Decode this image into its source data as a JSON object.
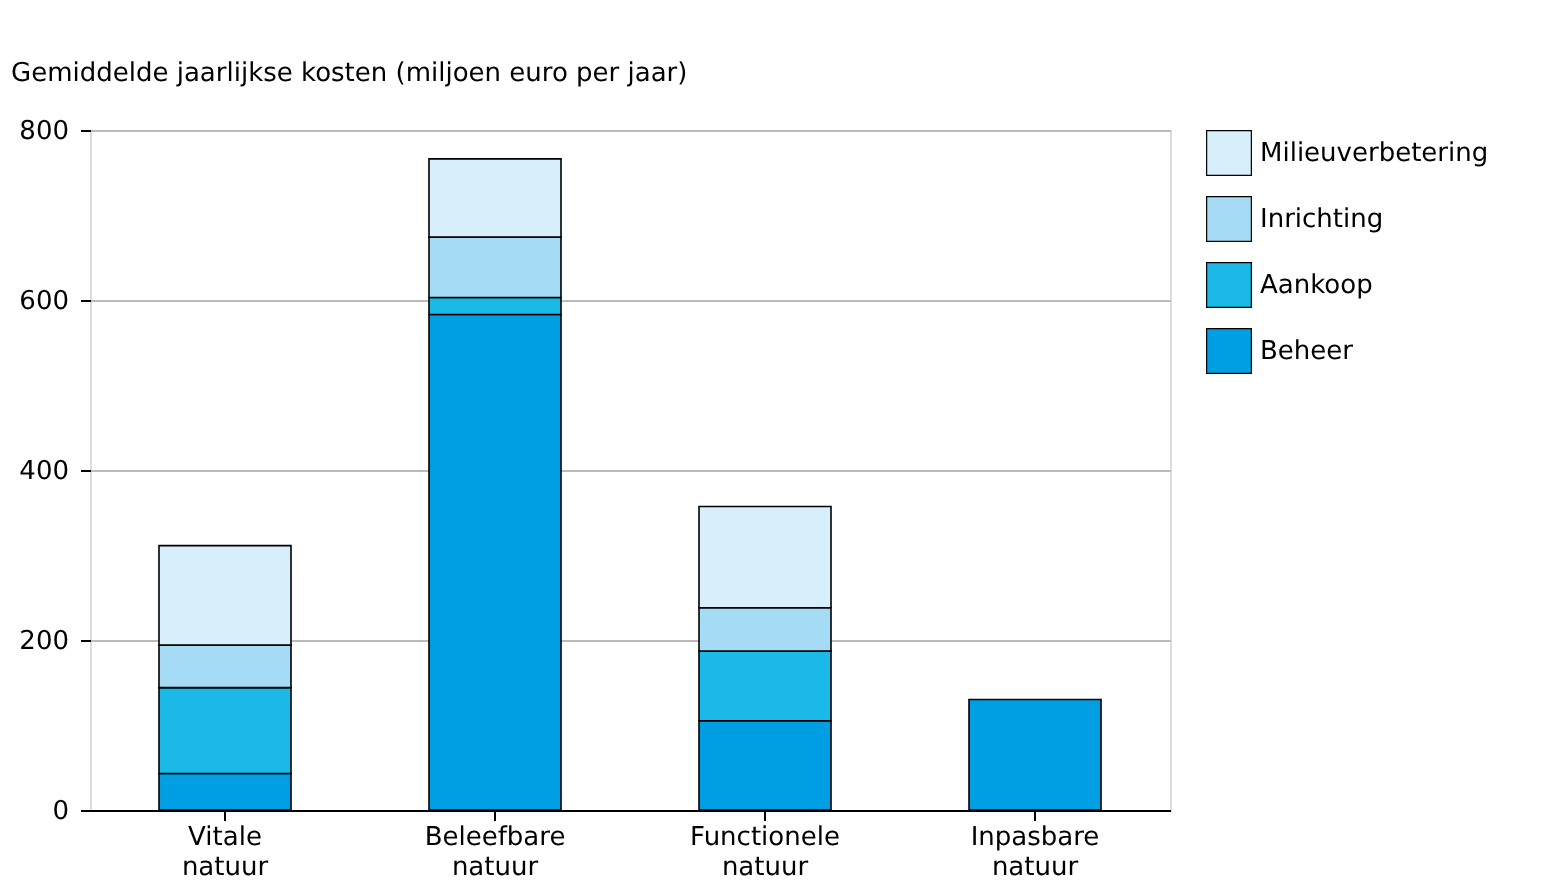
{
  "chart_data": {
    "type": "bar",
    "stacked": true,
    "ylabel": "Gemiddelde jaarlijkse kosten (miljoen euro per jaar)",
    "categories": [
      "Vitale natuur",
      "Beleefbare natuur",
      "Functionele natuur",
      "Inpasbare natuur"
    ],
    "series": [
      {
        "name": "Beheer",
        "color": "#009fe3",
        "values": [
          43,
          583,
          105,
          130
        ]
      },
      {
        "name": "Aankoop",
        "color": "#1bb9e8",
        "values": [
          101,
          20,
          82,
          null
        ]
      },
      {
        "name": "Inrichting",
        "color": "#a5dbf4",
        "values": [
          50,
          71,
          51,
          null
        ]
      },
      {
        "name": "Milieuverbetering",
        "color": "#d7eefb",
        "values": [
          117,
          92,
          119,
          null
        ]
      }
    ],
    "ylim": [
      0,
      800
    ],
    "yticks": [
      0,
      200,
      400,
      600,
      800
    ],
    "grid": "y",
    "legend": "top right"
  }
}
